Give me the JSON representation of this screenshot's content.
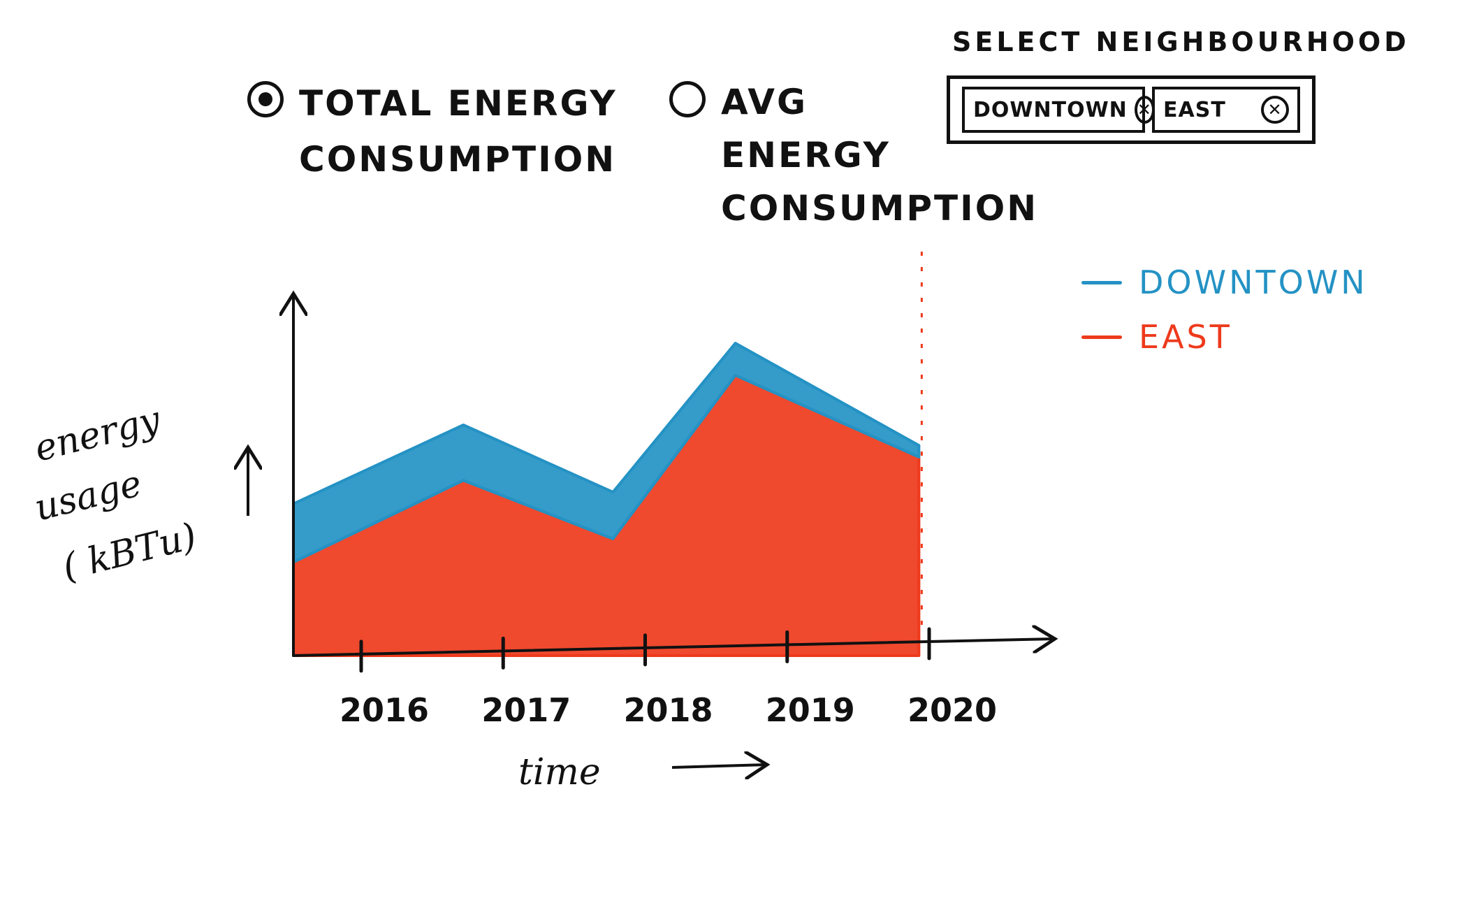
{
  "mode_toggle": {
    "options": [
      {
        "label": "TOTAL ENERGY\nCONSUMPTION",
        "selected": true
      },
      {
        "label": "AVG\nENERGY\nCONSUMPTION",
        "selected": false
      }
    ]
  },
  "neighbourhood_select": {
    "title": "SELECT NEIGHBOURHOOD",
    "chips": [
      {
        "label": "DOWNTOWN",
        "remove_icon": "close-circle-icon"
      },
      {
        "label": "EAST",
        "remove_icon": "close-circle-icon"
      }
    ]
  },
  "chart_data": {
    "type": "area",
    "stacked": true,
    "x": [
      2015.5,
      2016.75,
      2017.85,
      2018.75,
      2020.1
    ],
    "categories": [
      "2016",
      "2017",
      "2018",
      "2019",
      "2020"
    ],
    "series": [
      {
        "name": "EAST",
        "color": "#ee3a1c",
        "values": [
          1.6,
          3.0,
          2.0,
          4.8,
          3.4
        ]
      },
      {
        "name": "DOWNTOWN",
        "color": "#2492c4",
        "values": [
          1.0,
          0.95,
          0.8,
          0.55,
          0.2
        ]
      }
    ],
    "xlim": [
      2015.5,
      2021.1
    ],
    "ylim": [
      0,
      6.2
    ],
    "xlabel": "time",
    "ylabel": "energy\nusage\n( kBTu)",
    "current_marker_x": 2020.1,
    "current_marker_color": "#ee3a1c",
    "legend": {
      "position": "right",
      "entries": [
        "DOWNTOWN",
        "EAST"
      ]
    }
  }
}
